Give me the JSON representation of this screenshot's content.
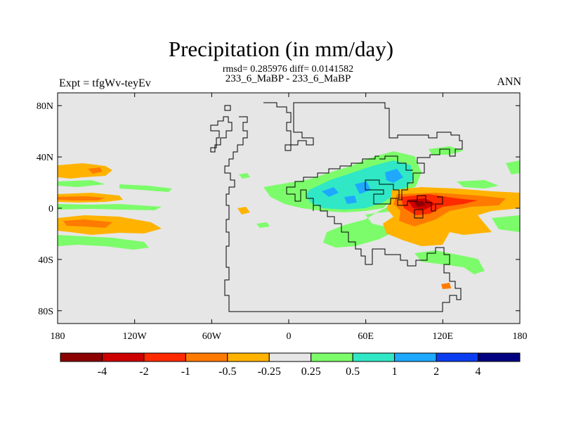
{
  "title": "Precipitation (in mm/day)",
  "stats": "rmsd= 0.285976  diff= 0.0141582",
  "case_name": "233_6_MaBP - 233_6_MaBP",
  "left_label": "Expt = tfgWv-teyEv",
  "right_label": "ANN",
  "colors": {
    "ocean_bg": "#e6e6e6",
    "levels": [
      "#8b0000",
      "#cc0000",
      "#ff2a00",
      "#ff7a00",
      "#ffb300",
      "#e6e6e6",
      "#7cfc6a",
      "#30e8c6",
      "#1ea9ff",
      "#0b3df0",
      "#000080"
    ]
  },
  "map": {
    "lat_ticks": [
      {
        "lat": 80,
        "label": "80N"
      },
      {
        "lat": 40,
        "label": "40N"
      },
      {
        "lat": 0,
        "label": "0"
      },
      {
        "lat": -40,
        "label": "40S"
      },
      {
        "lat": -80,
        "label": "80S"
      }
    ],
    "lon_ticks": [
      {
        "lon": -180,
        "label": "180"
      },
      {
        "lon": -120,
        "label": "120W"
      },
      {
        "lon": -60,
        "label": "60W"
      },
      {
        "lon": 0,
        "label": "0"
      },
      {
        "lon": 60,
        "label": "60E"
      },
      {
        "lon": 120,
        "label": "120E"
      },
      {
        "lon": 180,
        "label": "180"
      }
    ],
    "lat_range": [
      -90,
      90
    ],
    "lon_range": [
      -180,
      180
    ]
  },
  "colorbar": {
    "labels": [
      "-4",
      "-2",
      "-1",
      "-0.5",
      "-0.25",
      "0.25",
      "0.5",
      "1",
      "2",
      "4"
    ]
  }
}
